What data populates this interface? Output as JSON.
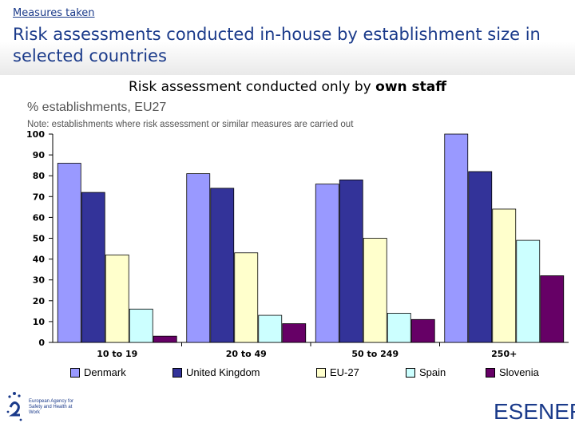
{
  "header": {
    "kicker": "Measures taken",
    "title": "Risk assessments conducted in-house by establishment size in selected countries"
  },
  "chart_heading": {
    "prefix": "Risk assessment conducted only by ",
    "emphasis": "own staff"
  },
  "chart_data": {
    "type": "bar",
    "title": "Risk assessment conducted only by own staff",
    "ylabel": "% establishments, EU27",
    "note": "Note: establishments where risk assessment or similar measures are carried out",
    "categories": [
      "10 to 19",
      "20 to 49",
      "50 to 249",
      "250+"
    ],
    "ylim": [
      0,
      100
    ],
    "yticks": [
      0,
      10,
      20,
      30,
      40,
      50,
      60,
      70,
      80,
      90,
      100
    ],
    "grid": false,
    "legend_position": "bottom",
    "series": [
      {
        "name": "Denmark",
        "values": [
          86,
          81,
          76,
          100
        ]
      },
      {
        "name": "United Kingdom",
        "values": [
          72,
          74,
          78,
          82
        ]
      },
      {
        "name": "EU-27",
        "values": [
          42,
          43,
          50,
          64
        ]
      },
      {
        "name": "Spain",
        "values": [
          16,
          13,
          14,
          49
        ]
      },
      {
        "name": "Slovenia",
        "values": [
          3,
          9,
          11,
          32
        ]
      }
    ]
  },
  "colors": {
    "Denmark": "#9999ff",
    "United Kingdom": "#333399",
    "EU-27": "#ffffcc",
    "Spain": "#ccffff",
    "Slovenia": "#660066",
    "title_blue": "#1a3a8a"
  },
  "logos": {
    "left_org": "European Agency for Safety and Health at Work",
    "right_brand": "ESENER"
  }
}
